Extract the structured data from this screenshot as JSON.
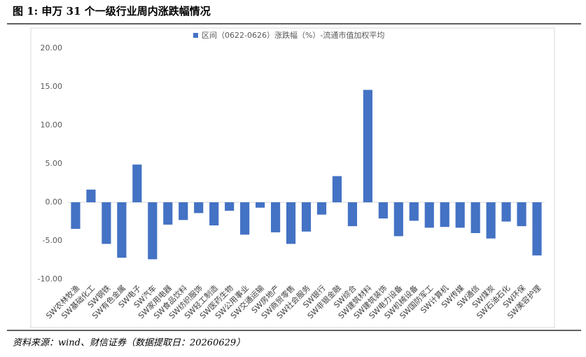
{
  "chart_data": {
    "type": "bar",
    "title": "图 1: 申万 31 个一级行业周内涨跌幅情况",
    "source": "资料来源：wind、财信证券（数据提取日：20260629）",
    "categories": [
      "SW农林牧渔",
      "SW基础化工",
      "SW钢铁",
      "SW有色金属",
      "SW电子",
      "SW汽车",
      "SW家用电器",
      "SW食品饮料",
      "SW纺织服饰",
      "SW轻工制造",
      "SW医药生物",
      "SW公用事业",
      "SW交通运输",
      "SW房地产",
      "SW商贸零售",
      "SW社会服务",
      "SW银行",
      "SW非银金融",
      "SW综合",
      "SW建筑材料",
      "SW建筑装饰",
      "SW电力设备",
      "SW机械设备",
      "SW国防军工",
      "SW计算机",
      "SW传媒",
      "SW通信",
      "SW煤炭",
      "SW石油石化",
      "SW环保",
      "SW美容护理"
    ],
    "series": [
      {
        "name": "区间（0622-0626）涨跌幅（%）-流通市值加权平均",
        "color": "#4472c4",
        "values": [
          -3.45,
          1.65,
          -5.4,
          -7.2,
          4.9,
          -7.4,
          -2.9,
          -2.3,
          -1.4,
          -3.0,
          -1.1,
          -4.2,
          -0.7,
          -3.9,
          -5.4,
          -3.8,
          -1.6,
          3.4,
          -3.1,
          14.6,
          -2.1,
          -4.4,
          -2.4,
          -3.3,
          -3.2,
          -3.3,
          -4.0,
          -4.7,
          -2.5,
          -3.1,
          -6.9
        ]
      }
    ],
    "ylim": [
      -10,
      20
    ],
    "yticks": [
      {
        "value": -10,
        "label": "-10.00"
      },
      {
        "value": -5,
        "label": "-5.00"
      },
      {
        "value": 0,
        "label": "0.00"
      },
      {
        "value": 5,
        "label": "5.00"
      },
      {
        "value": 10,
        "label": "10.00"
      },
      {
        "value": 15,
        "label": "15.00"
      },
      {
        "value": 20,
        "label": "20.00"
      }
    ],
    "grid": false
  }
}
